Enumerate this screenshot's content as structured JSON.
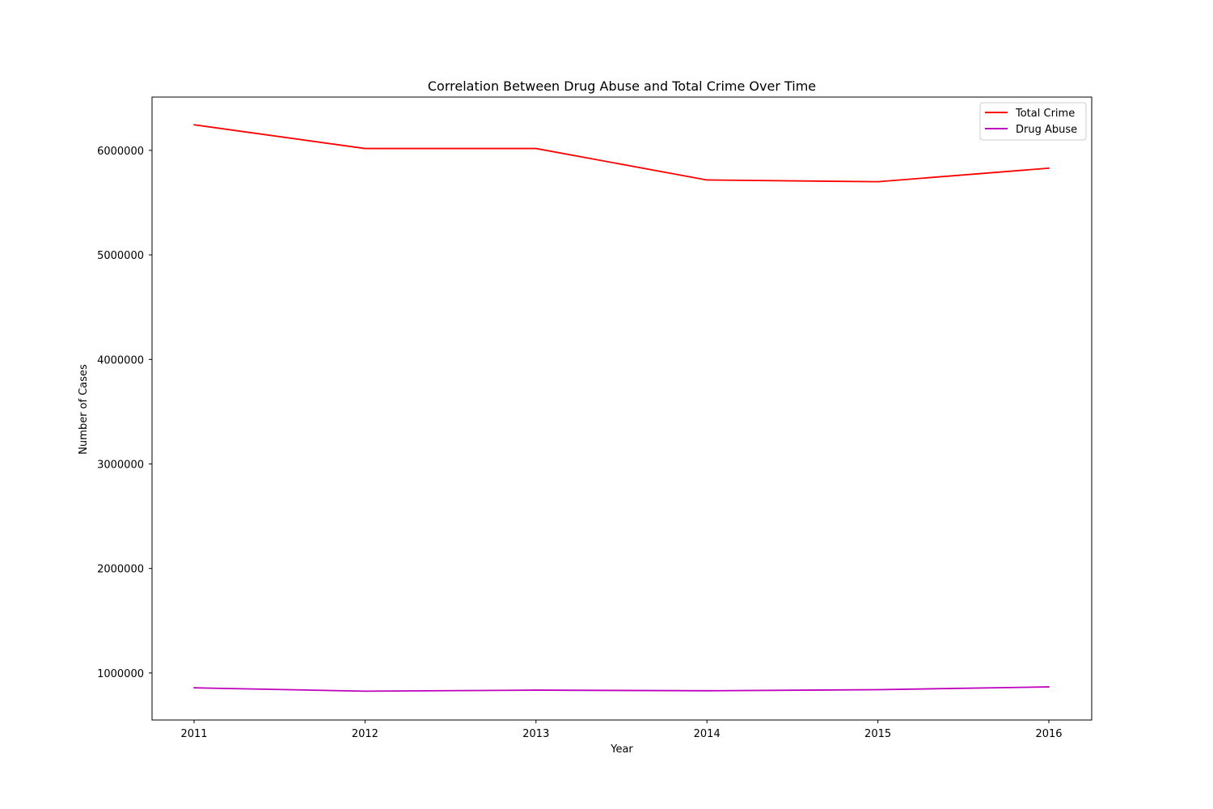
{
  "chart_data": {
    "type": "line",
    "title": "Correlation Between Drug Abuse and Total Crime Over Time",
    "xlabel": "Year",
    "ylabel": "Number of Cases",
    "categories": [
      "2011",
      "2012",
      "2013",
      "2014",
      "2015",
      "2016"
    ],
    "y_ticks": [
      "1000000",
      "2000000",
      "3000000",
      "4000000",
      "5000000",
      "6000000"
    ],
    "ylim": [
      550000,
      6510000
    ],
    "grid": false,
    "legend_position": "upper right",
    "series": [
      {
        "name": "Total Crime",
        "color": "#ff0000",
        "values": [
          6245000,
          6018000,
          6018000,
          5717000,
          5700000,
          5830000
        ]
      },
      {
        "name": "Drug Abuse",
        "color": "#bf00bf",
        "values": [
          858000,
          826000,
          836000,
          830000,
          840000,
          867000
        ]
      }
    ]
  }
}
